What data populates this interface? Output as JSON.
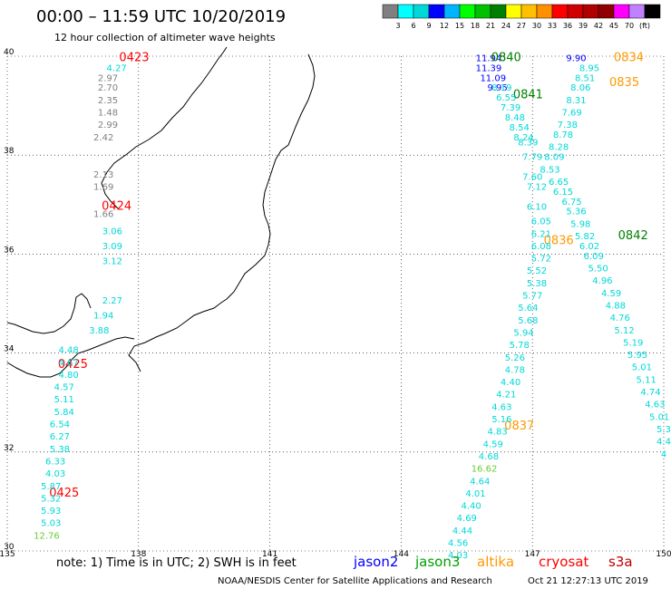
{
  "header": {
    "title": "00:00 – 11:59 UTC 10/20/2019",
    "subtitle": "12 hour collection of altimeter wave heights"
  },
  "legend_scale": {
    "colors": [
      "#808080",
      "#00ffff",
      "#00d8d8",
      "#0000ff",
      "#00b4ff",
      "#00ff00",
      "#00c000",
      "#008000",
      "#ffff00",
      "#ffc000",
      "#ff9000",
      "#ff0000",
      "#d00000",
      "#b00000",
      "#900000",
      "#ff00ff",
      "#c080ff",
      "#000000"
    ],
    "labels": [
      "3",
      "6",
      "9",
      "12",
      "15",
      "18",
      "21",
      "24",
      "27",
      "30",
      "33",
      "36",
      "39",
      "42",
      "45",
      "70",
      "(ft)"
    ]
  },
  "footer": {
    "note": "note: 1) Time is in UTC; 2) SWH is in feet",
    "satellites": [
      {
        "name": "jason2",
        "color": "#0000ff"
      },
      {
        "name": "jason3",
        "color": "#00a000"
      },
      {
        "name": "altika",
        "color": "#ff9900"
      },
      {
        "name": "cryosat",
        "color": "#ff0000"
      },
      {
        "name": "s3a",
        "color": "#c00000"
      }
    ],
    "credit": "NOAA/NESDIS Center for Satellite Applications and Research",
    "timestamp": "Oct 21 12:27:13 UTC 2019"
  },
  "chart_data": {
    "type": "scatter",
    "title": "00:00 – 11:59 UTC 10/20/2019",
    "subtitle": "12 hour collection of altimeter wave heights",
    "xlim": [
      135,
      150
    ],
    "ylim": [
      30,
      40
    ],
    "x_ticks": [
      "135",
      "138",
      "141",
      "144",
      "147",
      "150"
    ],
    "y_ticks": [
      "30",
      "32",
      "34",
      "36",
      "38",
      "40"
    ],
    "grid": true,
    "series": [
      {
        "name": "jason2",
        "color": "#0000ff",
        "points": [
          {
            "x": 146.0,
            "y": 39.9,
            "v": "11.94"
          },
          {
            "x": 146.0,
            "y": 39.7,
            "v": "11.39"
          },
          {
            "x": 146.1,
            "y": 39.5,
            "v": "11.09"
          },
          {
            "x": 146.2,
            "y": 39.3,
            "v": "9.95"
          },
          {
            "x": 148.0,
            "y": 39.9,
            "v": "9.90"
          }
        ]
      },
      {
        "name": "jason3",
        "color": "#008000",
        "points": [
          {
            "x": 146.4,
            "y": 39.9,
            "v": "0840"
          },
          {
            "x": 146.9,
            "y": 39.15,
            "v": "0841"
          },
          {
            "x": 149.3,
            "y": 36.3,
            "v": "0842"
          }
        ]
      },
      {
        "name": "altika",
        "color": "#ff9900",
        "points": [
          {
            "x": 149.2,
            "y": 39.9,
            "v": "0834"
          },
          {
            "x": 149.1,
            "y": 39.4,
            "v": "0835"
          },
          {
            "x": 147.6,
            "y": 36.2,
            "v": "0836"
          },
          {
            "x": 146.7,
            "y": 32.45,
            "v": "0837"
          }
        ]
      },
      {
        "name": "cryosat",
        "color": "#ff0000",
        "points": [
          {
            "x": 137.9,
            "y": 39.9,
            "v": "0423"
          },
          {
            "x": 137.5,
            "y": 36.9,
            "v": "0424"
          },
          {
            "x": 136.5,
            "y": 33.7,
            "v": "0425"
          },
          {
            "x": 136.3,
            "y": 31.1,
            "v": "0425"
          }
        ]
      },
      {
        "name": "track_a",
        "color": "#00d8d8",
        "points": [
          {
            "x": 146.3,
            "y": 39.3,
            "v": "8.19"
          },
          {
            "x": 146.4,
            "y": 39.1,
            "v": "6.55"
          },
          {
            "x": 146.5,
            "y": 38.9,
            "v": "7.39"
          },
          {
            "x": 146.6,
            "y": 38.7,
            "v": "8.48"
          },
          {
            "x": 146.7,
            "y": 38.5,
            "v": "8.54"
          },
          {
            "x": 146.8,
            "y": 38.3,
            "v": "8.24"
          },
          {
            "x": 146.9,
            "y": 38.2,
            "v": "8.39"
          },
          {
            "x": 147.0,
            "y": 37.9,
            "v": "7.79"
          },
          {
            "x": 147.0,
            "y": 37.5,
            "v": "7.60"
          },
          {
            "x": 147.1,
            "y": 37.3,
            "v": "7.12"
          },
          {
            "x": 147.1,
            "y": 36.9,
            "v": "6.10"
          },
          {
            "x": 147.2,
            "y": 36.6,
            "v": "6.05"
          },
          {
            "x": 147.2,
            "y": 36.35,
            "v": "6.21"
          },
          {
            "x": 147.2,
            "y": 36.1,
            "v": "6.08"
          },
          {
            "x": 147.2,
            "y": 35.85,
            "v": "5.72"
          },
          {
            "x": 147.1,
            "y": 35.6,
            "v": "5.52"
          },
          {
            "x": 147.1,
            "y": 35.35,
            "v": "5.38"
          },
          {
            "x": 147.0,
            "y": 35.1,
            "v": "5.77"
          },
          {
            "x": 146.9,
            "y": 34.85,
            "v": "5.64"
          },
          {
            "x": 146.9,
            "y": 34.6,
            "v": "5.68"
          },
          {
            "x": 146.8,
            "y": 34.35,
            "v": "5.94"
          },
          {
            "x": 146.7,
            "y": 34.1,
            "v": "5.78"
          },
          {
            "x": 146.6,
            "y": 33.85,
            "v": "5.26"
          },
          {
            "x": 146.6,
            "y": 33.6,
            "v": "4.78"
          },
          {
            "x": 146.5,
            "y": 33.35,
            "v": "4.40"
          },
          {
            "x": 146.4,
            "y": 33.1,
            "v": "4.21"
          },
          {
            "x": 146.3,
            "y": 32.85,
            "v": "4.63"
          },
          {
            "x": 146.3,
            "y": 32.6,
            "v": "5.16"
          },
          {
            "x": 146.2,
            "y": 32.35,
            "v": "4.83"
          },
          {
            "x": 146.1,
            "y": 32.1,
            "v": "4.59"
          },
          {
            "x": 146.0,
            "y": 31.85,
            "v": "4.68"
          },
          {
            "x": 145.8,
            "y": 31.35,
            "v": "4.64"
          },
          {
            "x": 145.7,
            "y": 31.1,
            "v": "4.01"
          },
          {
            "x": 145.6,
            "y": 30.85,
            "v": "4.40"
          },
          {
            "x": 145.5,
            "y": 30.6,
            "v": "4.69"
          },
          {
            "x": 145.4,
            "y": 30.35,
            "v": "4.44"
          },
          {
            "x": 145.3,
            "y": 30.1,
            "v": "4.56"
          },
          {
            "x": 145.3,
            "y": 29.85,
            "v": "4.03"
          }
        ]
      },
      {
        "name": "track_b",
        "color": "#00d8d8",
        "points": [
          {
            "x": 148.3,
            "y": 39.7,
            "v": "8.95"
          },
          {
            "x": 148.2,
            "y": 39.5,
            "v": "8.51"
          },
          {
            "x": 148.1,
            "y": 39.3,
            "v": "8.06"
          },
          {
            "x": 148.0,
            "y": 39.05,
            "v": "8.31"
          },
          {
            "x": 147.9,
            "y": 38.8,
            "v": "7.69"
          },
          {
            "x": 147.8,
            "y": 38.55,
            "v": "7.38"
          },
          {
            "x": 147.7,
            "y": 38.35,
            "v": "8.78"
          },
          {
            "x": 147.6,
            "y": 38.1,
            "v": "8.28"
          },
          {
            "x": 147.5,
            "y": 37.9,
            "v": "8.09"
          },
          {
            "x": 147.4,
            "y": 37.65,
            "v": "8.53"
          },
          {
            "x": 147.6,
            "y": 37.4,
            "v": "6.65"
          },
          {
            "x": 147.7,
            "y": 37.2,
            "v": "6.15"
          },
          {
            "x": 147.9,
            "y": 37.0,
            "v": "6.75"
          },
          {
            "x": 148.0,
            "y": 36.8,
            "v": "5.36"
          },
          {
            "x": 148.1,
            "y": 36.55,
            "v": "5.98"
          },
          {
            "x": 148.2,
            "y": 36.3,
            "v": "5.82"
          },
          {
            "x": 148.3,
            "y": 36.1,
            "v": "6.02"
          },
          {
            "x": 148.4,
            "y": 35.9,
            "v": "6.09"
          },
          {
            "x": 148.5,
            "y": 35.65,
            "v": "5.50"
          },
          {
            "x": 148.6,
            "y": 35.4,
            "v": "4.96"
          },
          {
            "x": 148.8,
            "y": 35.15,
            "v": "4.59"
          },
          {
            "x": 148.9,
            "y": 34.9,
            "v": "4.88"
          },
          {
            "x": 149.0,
            "y": 34.65,
            "v": "4.76"
          },
          {
            "x": 149.1,
            "y": 34.4,
            "v": "5.12"
          },
          {
            "x": 149.3,
            "y": 34.15,
            "v": "5.19"
          },
          {
            "x": 149.4,
            "y": 33.9,
            "v": "5.95"
          },
          {
            "x": 149.5,
            "y": 33.65,
            "v": "5.01"
          },
          {
            "x": 149.6,
            "y": 33.4,
            "v": "5.11"
          },
          {
            "x": 149.7,
            "y": 33.15,
            "v": "4.74"
          },
          {
            "x": 149.8,
            "y": 32.9,
            "v": "4.63"
          },
          {
            "x": 149.9,
            "y": 32.65,
            "v": "5.01"
          },
          {
            "x": 150.0,
            "y": 32.4,
            "v": "5.3"
          },
          {
            "x": 150.0,
            "y": 32.15,
            "v": "4.4"
          },
          {
            "x": 150.0,
            "y": 31.9,
            "v": "4"
          }
        ]
      },
      {
        "name": "track_c",
        "color": "#00d8d8",
        "points": [
          {
            "x": 137.5,
            "y": 39.7,
            "v": "4.27"
          },
          {
            "x": 137.4,
            "y": 36.4,
            "v": "3.06"
          },
          {
            "x": 137.4,
            "y": 36.1,
            "v": "3.09"
          },
          {
            "x": 137.4,
            "y": 35.8,
            "v": "3.12"
          },
          {
            "x": 137.4,
            "y": 35.0,
            "v": "2.27"
          },
          {
            "x": 137.2,
            "y": 34.7,
            "v": "1.94"
          },
          {
            "x": 137.1,
            "y": 34.4,
            "v": "3.88"
          },
          {
            "x": 136.4,
            "y": 34.0,
            "v": "4.48"
          },
          {
            "x": 136.4,
            "y": 33.75,
            "v": "4.67"
          },
          {
            "x": 136.4,
            "y": 33.5,
            "v": "4.80"
          },
          {
            "x": 136.3,
            "y": 33.25,
            "v": "4.57"
          },
          {
            "x": 136.3,
            "y": 33.0,
            "v": "5.11"
          },
          {
            "x": 136.3,
            "y": 32.75,
            "v": "5.84"
          },
          {
            "x": 136.2,
            "y": 32.5,
            "v": "6.54"
          },
          {
            "x": 136.2,
            "y": 32.25,
            "v": "6.27"
          },
          {
            "x": 136.2,
            "y": 32.0,
            "v": "5.38"
          },
          {
            "x": 136.1,
            "y": 31.75,
            "v": "6.33"
          },
          {
            "x": 136.1,
            "y": 31.5,
            "v": "4.03"
          },
          {
            "x": 136.0,
            "y": 31.25,
            "v": "5.87"
          },
          {
            "x": 136.0,
            "y": 31.0,
            "v": "5.32"
          },
          {
            "x": 136.0,
            "y": 30.75,
            "v": "5.93"
          },
          {
            "x": 136.0,
            "y": 30.5,
            "v": "5.03"
          }
        ]
      },
      {
        "name": "track_c_gray",
        "color": "#808080",
        "points": [
          {
            "x": 137.3,
            "y": 39.5,
            "v": "2.97"
          },
          {
            "x": 137.3,
            "y": 39.3,
            "v": "2.70"
          },
          {
            "x": 137.3,
            "y": 39.05,
            "v": "2.35"
          },
          {
            "x": 137.3,
            "y": 38.8,
            "v": "1.48"
          },
          {
            "x": 137.3,
            "y": 38.55,
            "v": "2.99"
          },
          {
            "x": 137.2,
            "y": 38.3,
            "v": "2.42"
          },
          {
            "x": 137.2,
            "y": 37.55,
            "v": "2.13"
          },
          {
            "x": 137.2,
            "y": 37.3,
            "v": "1.69"
          },
          {
            "x": 137.2,
            "y": 36.75,
            "v": "1.66"
          }
        ]
      },
      {
        "name": "track_green",
        "color": "#66cc33",
        "points": [
          {
            "x": 145.9,
            "y": 31.6,
            "v": "16.62"
          },
          {
            "x": 135.9,
            "y": 30.25,
            "v": "12.76"
          }
        ]
      }
    ]
  }
}
